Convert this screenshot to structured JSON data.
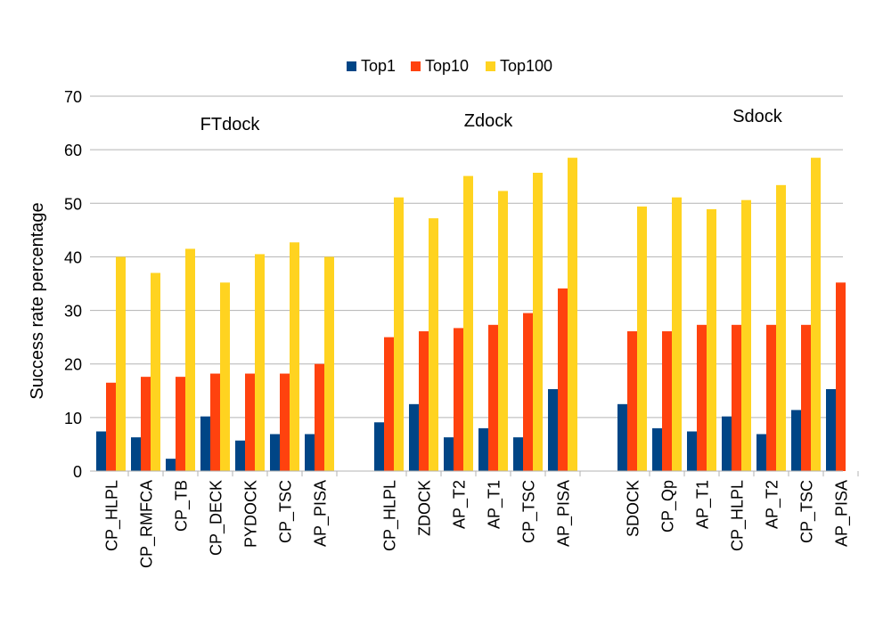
{
  "chart_data": {
    "type": "bar",
    "ylabel": "Success rate percentage",
    "ylim": [
      0,
      70
    ],
    "yticks": [
      0,
      10,
      20,
      30,
      40,
      50,
      60,
      70
    ],
    "grid": true,
    "legend_position": "top-center",
    "series": [
      {
        "name": "Top1",
        "color": "#004586"
      },
      {
        "name": "Top10",
        "color": "#ff420e"
      },
      {
        "name": "Top100",
        "color": "#ffd320"
      }
    ],
    "groups": [
      {
        "name": "FTdock",
        "categories": [
          "CP_HLPL",
          "CP_RMFCA",
          "CP_TB",
          "CP_DECK",
          "PYDOCK",
          "CP_TSC",
          "AP_PISA"
        ],
        "values": {
          "Top1": [
            7.4,
            6.3,
            2.3,
            10.2,
            5.7,
            6.9,
            6.9
          ],
          "Top10": [
            16.5,
            17.6,
            17.6,
            18.2,
            18.2,
            18.2,
            20.0
          ],
          "Top100": [
            40.0,
            37.0,
            41.5,
            35.2,
            40.5,
            42.7,
            40.0
          ]
        }
      },
      {
        "name": "Zdock",
        "categories": [
          "CP_HLPL",
          "ZDOCK",
          "AP_T2",
          "AP_T1",
          "CP_TSC",
          "AP_PISA"
        ],
        "values": {
          "Top1": [
            9.1,
            12.5,
            6.3,
            8.0,
            6.3,
            15.3
          ],
          "Top10": [
            25.0,
            26.1,
            26.7,
            27.3,
            29.5,
            34.1
          ],
          "Top100": [
            51.1,
            47.2,
            55.1,
            52.3,
            55.7,
            58.5
          ]
        }
      },
      {
        "name": "Sdock",
        "categories": [
          "SDOCK",
          "CP_Qp",
          "AP_T1",
          "CP_HLPL",
          "AP_T2",
          "CP_TSC",
          "AP_PISA"
        ],
        "values": {
          "Top1": [
            12.5,
            8.0,
            7.4,
            10.2,
            6.9,
            11.4,
            15.3
          ],
          "Top10": [
            26.1,
            26.1,
            27.3,
            27.3,
            27.3,
            27.3,
            35.2
          ],
          "Top100": [
            49.4,
            51.1,
            48.9,
            50.6,
            53.4,
            58.5,
            null
          ]
        }
      }
    ]
  }
}
